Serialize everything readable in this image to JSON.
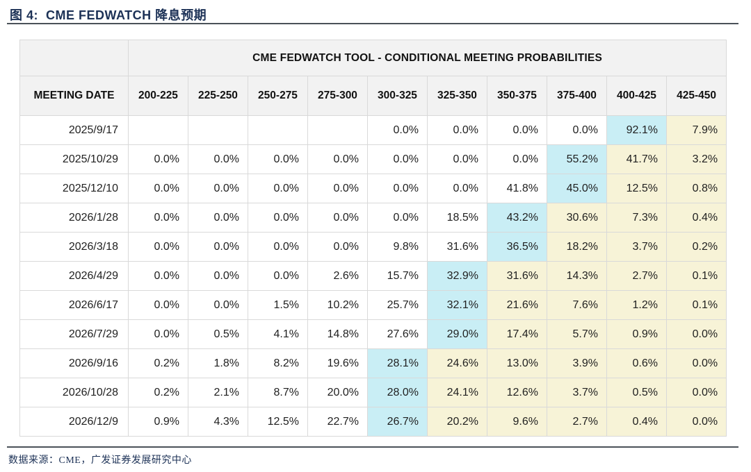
{
  "title": "图 4:  CME FEDWATCH 降息预期",
  "table": {
    "merged_header": "CME FEDWATCH TOOL - CONDITIONAL MEETING PROBABILITIES",
    "date_col_header": "MEETING DATE",
    "rate_headers": [
      "200-225",
      "225-250",
      "250-275",
      "275-300",
      "300-325",
      "325-350",
      "350-375",
      "375-400",
      "400-425",
      "425-450"
    ],
    "rows": [
      {
        "date": "2025/9/17",
        "values": [
          "",
          "",
          "",
          "",
          "0.0%",
          "0.0%",
          "0.0%",
          "0.0%",
          "92.1%",
          "7.9%"
        ],
        "highlights": [
          "",
          "",
          "",
          "",
          "",
          "",
          "",
          "",
          "c",
          "y"
        ]
      },
      {
        "date": "2025/10/29",
        "values": [
          "0.0%",
          "0.0%",
          "0.0%",
          "0.0%",
          "0.0%",
          "0.0%",
          "0.0%",
          "55.2%",
          "41.7%",
          "3.2%"
        ],
        "highlights": [
          "",
          "",
          "",
          "",
          "",
          "",
          "",
          "c",
          "y",
          "y"
        ]
      },
      {
        "date": "2025/12/10",
        "values": [
          "0.0%",
          "0.0%",
          "0.0%",
          "0.0%",
          "0.0%",
          "0.0%",
          "41.8%",
          "45.0%",
          "12.5%",
          "0.8%"
        ],
        "highlights": [
          "",
          "",
          "",
          "",
          "",
          "",
          "",
          "c",
          "y",
          "y"
        ]
      },
      {
        "date": "2026/1/28",
        "values": [
          "0.0%",
          "0.0%",
          "0.0%",
          "0.0%",
          "0.0%",
          "18.5%",
          "43.2%",
          "30.6%",
          "7.3%",
          "0.4%"
        ],
        "highlights": [
          "",
          "",
          "",
          "",
          "",
          "",
          "c",
          "y",
          "y",
          "y"
        ]
      },
      {
        "date": "2026/3/18",
        "values": [
          "0.0%",
          "0.0%",
          "0.0%",
          "0.0%",
          "9.8%",
          "31.6%",
          "36.5%",
          "18.2%",
          "3.7%",
          "0.2%"
        ],
        "highlights": [
          "",
          "",
          "",
          "",
          "",
          "",
          "c",
          "y",
          "y",
          "y"
        ]
      },
      {
        "date": "2026/4/29",
        "values": [
          "0.0%",
          "0.0%",
          "0.0%",
          "2.6%",
          "15.7%",
          "32.9%",
          "31.6%",
          "14.3%",
          "2.7%",
          "0.1%"
        ],
        "highlights": [
          "",
          "",
          "",
          "",
          "",
          "c",
          "y",
          "y",
          "y",
          "y"
        ]
      },
      {
        "date": "2026/6/17",
        "values": [
          "0.0%",
          "0.0%",
          "1.5%",
          "10.2%",
          "25.7%",
          "32.1%",
          "21.6%",
          "7.6%",
          "1.2%",
          "0.1%"
        ],
        "highlights": [
          "",
          "",
          "",
          "",
          "",
          "c",
          "y",
          "y",
          "y",
          "y"
        ]
      },
      {
        "date": "2026/7/29",
        "values": [
          "0.0%",
          "0.5%",
          "4.1%",
          "14.8%",
          "27.6%",
          "29.0%",
          "17.4%",
          "5.7%",
          "0.9%",
          "0.0%"
        ],
        "highlights": [
          "",
          "",
          "",
          "",
          "",
          "c",
          "y",
          "y",
          "y",
          "y"
        ]
      },
      {
        "date": "2026/9/16",
        "values": [
          "0.2%",
          "1.8%",
          "8.2%",
          "19.6%",
          "28.1%",
          "24.6%",
          "13.0%",
          "3.9%",
          "0.6%",
          "0.0%"
        ],
        "highlights": [
          "",
          "",
          "",
          "",
          "c",
          "y",
          "y",
          "y",
          "y",
          "y"
        ]
      },
      {
        "date": "2026/10/28",
        "values": [
          "0.2%",
          "2.1%",
          "8.7%",
          "20.0%",
          "28.0%",
          "24.1%",
          "12.6%",
          "3.7%",
          "0.5%",
          "0.0%"
        ],
        "highlights": [
          "",
          "",
          "",
          "",
          "c",
          "y",
          "y",
          "y",
          "y",
          "y"
        ]
      },
      {
        "date": "2026/12/9",
        "values": [
          "0.9%",
          "4.3%",
          "12.5%",
          "22.7%",
          "26.7%",
          "20.2%",
          "9.6%",
          "2.7%",
          "0.4%",
          "0.0%"
        ],
        "highlights": [
          "",
          "",
          "",
          "",
          "c",
          "y",
          "y",
          "y",
          "y",
          "y"
        ]
      }
    ]
  },
  "footer": {
    "source": "数据来源：CME，广发证券发展研究中心"
  },
  "colors": {
    "accent_navy": "#1c3156",
    "highlight_cyan": "#c9eef5",
    "highlight_yellow": "#f7f3d7",
    "header_bg": "#f2f2f2",
    "grid_line": "#d9d9d9"
  }
}
